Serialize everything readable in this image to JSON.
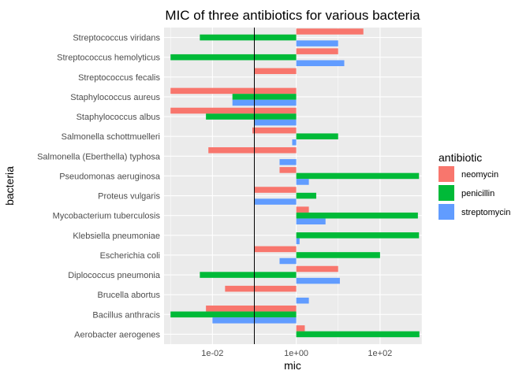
{
  "chart_data": {
    "type": "bar",
    "orientation": "horizontal",
    "title": "MIC of three antibiotics for various bacteria",
    "xlabel": "mic",
    "ylabel": "bacteria",
    "x_scale": "log10",
    "xlim": [
      0.0007,
      1000
    ],
    "x_ticks": [
      {
        "value": 0.01,
        "label": "1e-02"
      },
      {
        "value": 1,
        "label": "1e+00"
      },
      {
        "value": 100,
        "label": "1e+02"
      }
    ],
    "reference_line": 0.1,
    "grid": true,
    "legend": {
      "title": "antibiotic",
      "position": "right"
    },
    "categories": [
      "Aerobacter aerogenes",
      "Bacillus anthracis",
      "Brucella abortus",
      "Diplococcus pneumonia",
      "Escherichia coli",
      "Klebsiella pneumoniae",
      "Mycobacterium tuberculosis",
      "Proteus vulgaris",
      "Pseudomonas aeruginosa",
      "Salmonella (Eberthella) typhosa",
      "Salmonella schottmuelleri",
      "Staphylococcus albus",
      "Staphylococcus aureus",
      "Streptococcus fecalis",
      "Streptococcus hemolyticus",
      "Streptococcus viridans"
    ],
    "series": [
      {
        "name": "neomycin",
        "color": "#F8766D",
        "values": [
          1.6,
          0.007,
          0.02,
          10,
          0.1,
          1,
          2,
          0.1,
          0.4,
          0.008,
          0.09,
          0.001,
          0.001,
          0.1,
          10,
          40
        ]
      },
      {
        "name": "penicillin",
        "color": "#00BA38",
        "values": [
          870,
          0.001,
          1,
          0.005,
          100,
          850,
          800,
          3,
          850,
          1,
          10,
          0.007,
          0.03,
          1,
          0.001,
          0.005
        ]
      },
      {
        "name": "streptomycin",
        "color": "#619CFF",
        "values": [
          1,
          0.01,
          2,
          11,
          0.4,
          1.2,
          5,
          0.1,
          2,
          0.4,
          0.8,
          0.1,
          0.03,
          1,
          14,
          10
        ]
      }
    ]
  }
}
